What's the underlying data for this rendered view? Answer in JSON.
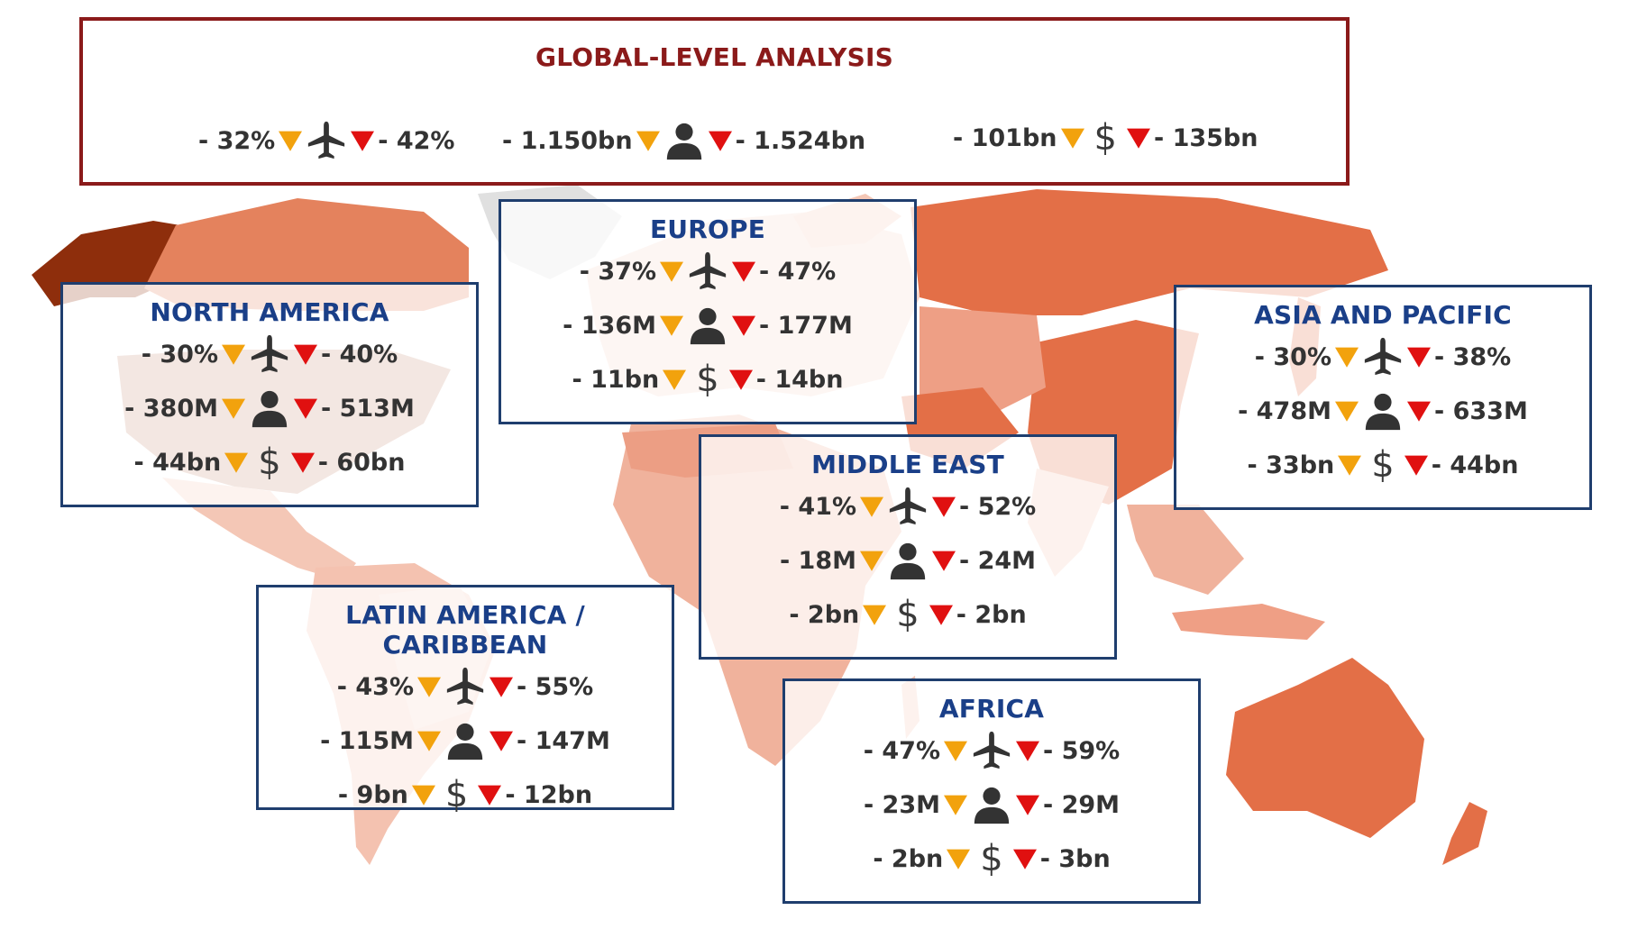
{
  "colors": {
    "lower_marker": "#f2a20d",
    "upper_marker": "#e01010",
    "global_border": "#8b1a1a",
    "global_title": "#8b1a1a",
    "region_title": "#1a3f88",
    "region_border": "#1f3e6e"
  },
  "icons": {
    "flights": "airplane-icon",
    "passengers": "person-icon",
    "revenue": "dollar-icon",
    "lower": "orange-down-triangle-icon",
    "upper": "red-down-triangle-icon"
  },
  "global": {
    "title": "GLOBAL-LEVEL ANALYSIS",
    "flights": {
      "low": "- 32%",
      "high": "- 42%"
    },
    "passengers": {
      "low": "- 1.150bn",
      "high": "- 1.524bn"
    },
    "revenue": {
      "low": "- 101bn",
      "high": "- 135bn",
      "symbol": "$"
    }
  },
  "regions": {
    "north_america": {
      "title": "NORTH AMERICA",
      "flights": {
        "low": "- 30%",
        "high": "- 40%"
      },
      "passengers": {
        "low": "- 380M",
        "high": "- 513M"
      },
      "revenue": {
        "low": "- 44bn",
        "high": "- 60bn",
        "symbol": "$"
      }
    },
    "europe": {
      "title": "EUROPE",
      "flights": {
        "low": "- 37%",
        "high": "- 47%"
      },
      "passengers": {
        "low": "- 136M",
        "high": "- 177M"
      },
      "revenue": {
        "low": "- 11bn",
        "high": "- 14bn",
        "symbol": "$"
      }
    },
    "asia_pacific": {
      "title": "ASIA AND PACIFIC",
      "flights": {
        "low": "- 30%",
        "high": "- 38%"
      },
      "passengers": {
        "low": "- 478M",
        "high": "- 633M"
      },
      "revenue": {
        "low": "- 33bn",
        "high": "- 44bn",
        "symbol": "$"
      }
    },
    "middle_east": {
      "title": "MIDDLE EAST",
      "flights": {
        "low": "- 41%",
        "high": "- 52%"
      },
      "passengers": {
        "low": "- 18M",
        "high": "- 24M"
      },
      "revenue": {
        "low": "- 2bn",
        "high": "- 2bn",
        "symbol": "$"
      }
    },
    "latin_america": {
      "title": "LATIN AMERICA / CARIBBEAN",
      "flights": {
        "low": "- 43%",
        "high": "- 55%"
      },
      "passengers": {
        "low": "- 115M",
        "high": "- 147M"
      },
      "revenue": {
        "low": "- 9bn",
        "high": "- 12bn",
        "symbol": "$"
      }
    },
    "africa": {
      "title": "AFRICA",
      "flights": {
        "low": "- 47%",
        "high": "- 59%"
      },
      "passengers": {
        "low": "- 23M",
        "high": "- 29M"
      },
      "revenue": {
        "low": "- 2bn",
        "high": "- 3bn",
        "symbol": "$"
      }
    }
  }
}
